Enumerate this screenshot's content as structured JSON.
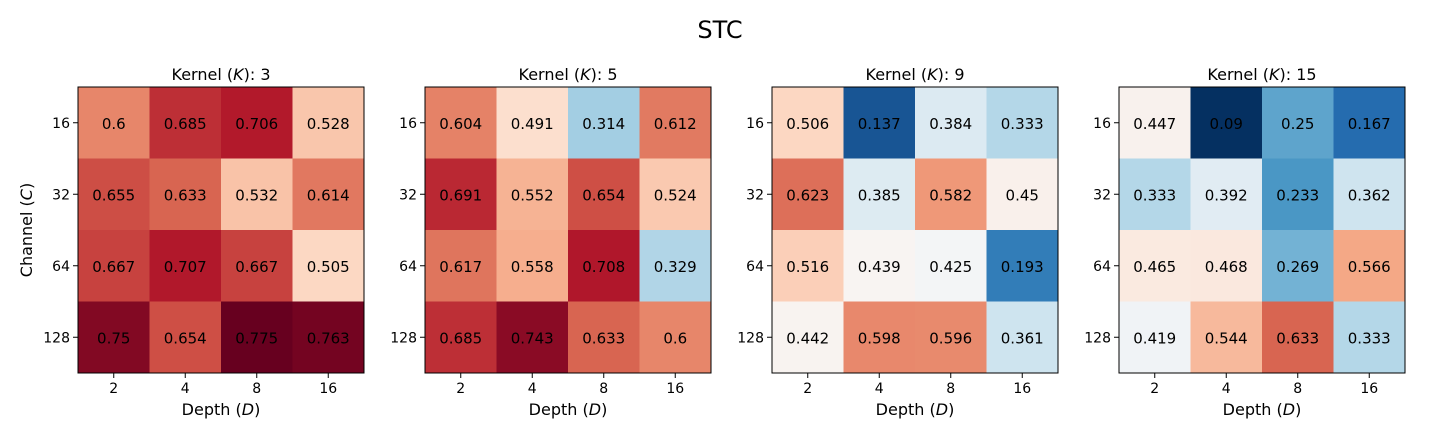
{
  "figure": {
    "title": "STC",
    "ylabel_prefix": "Channel (",
    "ylabel_var": "C",
    "ylabel_suffix": ")",
    "xlabel_prefix": "Depth (",
    "xlabel_var": "D",
    "xlabel_suffix": ")",
    "panel_title_prefix": "Kernel (",
    "panel_title_var": "K",
    "panel_title_suffix": "): "
  },
  "chart_data": [
    {
      "type": "heatmap",
      "title": "Kernel (K): 3",
      "kernel": "3",
      "xlabel": "Depth (D)",
      "ylabel": "Channel (C)",
      "x_categories": [
        "2",
        "4",
        "8",
        "16"
      ],
      "y_categories": [
        "16",
        "32",
        "64",
        "128"
      ],
      "values": [
        [
          0.6,
          0.685,
          0.706,
          0.528
        ],
        [
          0.655,
          0.633,
          0.532,
          0.614
        ],
        [
          0.667,
          0.707,
          0.667,
          0.505
        ],
        [
          0.75,
          0.654,
          0.775,
          0.763
        ]
      ],
      "colormap": "RdBu_r",
      "vmin": 0.09,
      "vmax": 0.775
    },
    {
      "type": "heatmap",
      "title": "Kernel (K): 5",
      "kernel": "5",
      "xlabel": "Depth (D)",
      "ylabel": "",
      "x_categories": [
        "2",
        "4",
        "8",
        "16"
      ],
      "y_categories": [
        "16",
        "32",
        "64",
        "128"
      ],
      "values": [
        [
          0.604,
          0.491,
          0.314,
          0.612
        ],
        [
          0.691,
          0.552,
          0.654,
          0.524
        ],
        [
          0.617,
          0.558,
          0.708,
          0.329
        ],
        [
          0.685,
          0.743,
          0.633,
          0.6
        ]
      ],
      "colormap": "RdBu_r",
      "vmin": 0.09,
      "vmax": 0.775
    },
    {
      "type": "heatmap",
      "title": "Kernel (K): 9",
      "kernel": "9",
      "xlabel": "Depth (D)",
      "ylabel": "",
      "x_categories": [
        "2",
        "4",
        "8",
        "16"
      ],
      "y_categories": [
        "16",
        "32",
        "64",
        "128"
      ],
      "values": [
        [
          0.506,
          0.137,
          0.384,
          0.333
        ],
        [
          0.623,
          0.385,
          0.582,
          0.45
        ],
        [
          0.516,
          0.439,
          0.425,
          0.193
        ],
        [
          0.442,
          0.598,
          0.596,
          0.361
        ]
      ],
      "colormap": "RdBu_r",
      "vmin": 0.09,
      "vmax": 0.775
    },
    {
      "type": "heatmap",
      "title": "Kernel (K): 15",
      "kernel": "15",
      "xlabel": "Depth (D)",
      "ylabel": "",
      "x_categories": [
        "2",
        "4",
        "8",
        "16"
      ],
      "y_categories": [
        "16",
        "32",
        "64",
        "128"
      ],
      "values": [
        [
          0.447,
          0.09,
          0.25,
          0.167
        ],
        [
          0.333,
          0.392,
          0.233,
          0.362
        ],
        [
          0.465,
          0.468,
          0.269,
          0.566
        ],
        [
          0.419,
          0.544,
          0.633,
          0.333
        ]
      ],
      "colormap": "RdBu_r",
      "vmin": 0.09,
      "vmax": 0.775
    }
  ]
}
